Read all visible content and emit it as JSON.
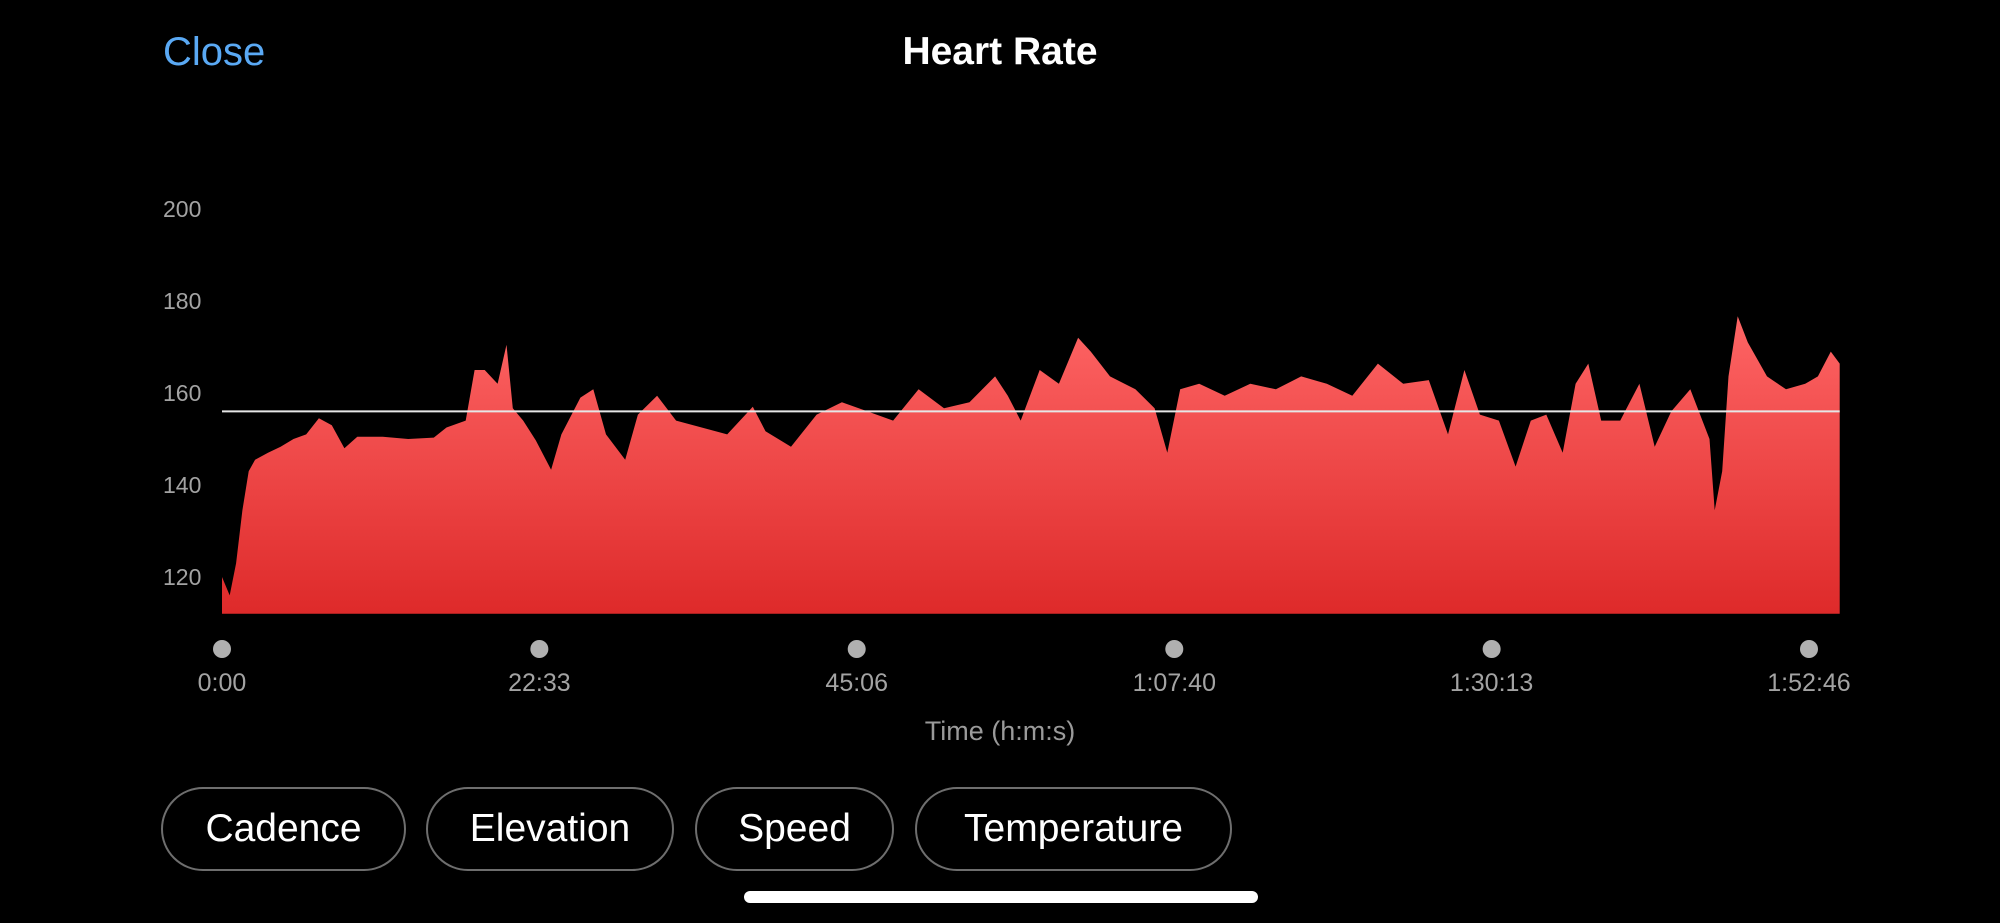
{
  "header": {
    "close_label": "Close",
    "title": "Heart Rate"
  },
  "colors": {
    "accent": "#5aa9f4",
    "fill_top": "#fe6565",
    "fill_bottom": "#de2a2a",
    "reference_line": "#e6e6e6"
  },
  "metric_buttons": [
    {
      "label": "Cadence"
    },
    {
      "label": "Elevation"
    },
    {
      "label": "Speed"
    },
    {
      "label": "Temperature"
    }
  ],
  "chart_data": {
    "type": "area",
    "title": "Heart Rate",
    "xlabel": "Time (h:m:s)",
    "ylabel": "",
    "y_ticks": [
      120,
      140,
      160,
      180,
      200
    ],
    "x_ticks": [
      "0:00",
      "22:33",
      "45:06",
      "1:07:40",
      "1:30:13",
      "1:52:46"
    ],
    "ylim": [
      112,
      200
    ],
    "reference_line": 156,
    "grid": false,
    "points": [
      [
        "0:00",
        120
      ],
      [
        "0:33",
        116
      ],
      [
        "1:00",
        123
      ],
      [
        "1:27",
        134.5
      ],
      [
        "1:54",
        143
      ],
      [
        "2:21",
        145.5
      ],
      [
        "3:16",
        147
      ],
      [
        "4:10",
        148.3
      ],
      [
        "5:05",
        150
      ],
      [
        "5:59",
        151
      ],
      [
        "6:53",
        154.5
      ],
      [
        "7:48",
        153
      ],
      [
        "8:42",
        148
      ],
      [
        "9:37",
        150.5
      ],
      [
        "11:25",
        150.5
      ],
      [
        "13:14",
        150
      ],
      [
        "15:03",
        150.3
      ],
      [
        "15:57",
        152.5
      ],
      [
        "17:19",
        154
      ],
      [
        "17:57",
        165
      ],
      [
        "18:40",
        165
      ],
      [
        "19:35",
        162
      ],
      [
        "20:13",
        170.5
      ],
      [
        "20:40",
        156.7
      ],
      [
        "21:24",
        154
      ],
      [
        "22:18",
        149.7
      ],
      [
        "23:23",
        143.3
      ],
      [
        "24:07",
        151
      ],
      [
        "25:28",
        159
      ],
      [
        "26:23",
        160.8
      ],
      [
        "27:17",
        151
      ],
      [
        "28:39",
        145.5
      ],
      [
        "29:33",
        155.3
      ],
      [
        "30:55",
        159.4
      ],
      [
        "32:16",
        154
      ],
      [
        "34:05",
        152.5
      ],
      [
        "35:54",
        151
      ],
      [
        "37:43",
        157
      ],
      [
        "38:37",
        151.7
      ],
      [
        "40:26",
        148.3
      ],
      [
        "42:15",
        155.3
      ],
      [
        "44:03",
        158
      ],
      [
        "45:52",
        156
      ],
      [
        "47:41",
        154
      ],
      [
        "49:30",
        160.8
      ],
      [
        "51:18",
        156.7
      ],
      [
        "53:07",
        158
      ],
      [
        "54:56",
        163.6
      ],
      [
        "55:50",
        159.4
      ],
      [
        "56:45",
        154
      ],
      [
        "58:06",
        165
      ],
      [
        "59:28",
        162
      ],
      [
        "1:00:50",
        172
      ],
      [
        "1:01:44",
        169
      ],
      [
        "1:03:06",
        163.6
      ],
      [
        "1:04:54",
        160.8
      ],
      [
        "1:06:16",
        156.7
      ],
      [
        "1:07:10",
        147
      ],
      [
        "1:08:05",
        160.8
      ],
      [
        "1:09:26",
        162
      ],
      [
        "1:11:15",
        159.4
      ],
      [
        "1:13:04",
        162
      ],
      [
        "1:14:53",
        160.8
      ],
      [
        "1:16:41",
        163.6
      ],
      [
        "1:18:30",
        162
      ],
      [
        "1:20:19",
        159.4
      ],
      [
        "1:22:08",
        166.4
      ],
      [
        "1:23:56",
        162
      ],
      [
        "1:25:45",
        162.8
      ],
      [
        "1:27:07",
        151
      ],
      [
        "1:28:17",
        165
      ],
      [
        "1:29:23",
        155.3
      ],
      [
        "1:30:44",
        154
      ],
      [
        "1:31:55",
        144
      ],
      [
        "1:33:00",
        154
      ],
      [
        "1:34:06",
        155.3
      ],
      [
        "1:35:16",
        147
      ],
      [
        "1:36:11",
        162
      ],
      [
        "1:37:05",
        166.4
      ],
      [
        "1:38:00",
        154
      ],
      [
        "1:39:21",
        154
      ],
      [
        "1:40:43",
        162
      ],
      [
        "1:41:48",
        148.3
      ],
      [
        "1:42:59",
        156
      ],
      [
        "1:44:20",
        160.8
      ],
      [
        "1:45:42",
        150
      ],
      [
        "1:46:04",
        134.5
      ],
      [
        "1:46:36",
        143
      ],
      [
        "1:47:03",
        163.6
      ],
      [
        "1:47:42",
        176.7
      ],
      [
        "1:48:25",
        171
      ],
      [
        "1:49:47",
        163.6
      ],
      [
        "1:51:08",
        160.8
      ],
      [
        "1:52:30",
        162
      ],
      [
        "1:53:24",
        163.6
      ],
      [
        "1:54:19",
        169
      ],
      [
        "1:54:57",
        166.4
      ]
    ]
  }
}
